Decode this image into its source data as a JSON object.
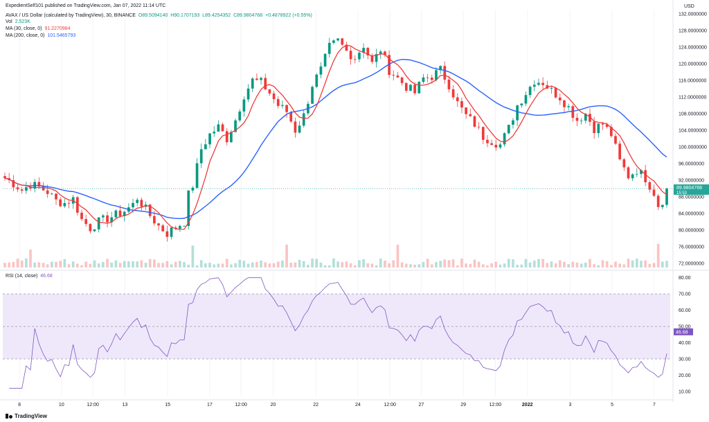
{
  "header": {
    "published": "ExpedientSelf101 published on TradingView.com, Jan 07, 2022 11:14 UTC",
    "symbol": "AVAX / US Dollar (calculated by TradingView), 30, BINANCE",
    "open": "O89.5094140",
    "high": "H90.1707193",
    "low": "L89.4254352",
    "close": "C89.9804768",
    "change": "+0.4878922 (+0.55%)",
    "vol_label": "Vol",
    "vol_value": "2.523K",
    "ma30_label": "MA (30, close, 0)",
    "ma30_value": "91.2270984",
    "ma200_label": "MA (200, close, 0)",
    "ma200_value": "101.5465793",
    "rsi_label": "RSI (14, close)",
    "rsi_value": "46.68"
  },
  "brand": "TradingView",
  "colors": {
    "up": "#089981",
    "down": "#ef3a3a",
    "ma30": "#ef3a3a",
    "ma200": "#2962ff",
    "rsi": "#7e57c2",
    "rsi_band": "#efe8fb",
    "last_price_bg": "#26a69a"
  },
  "chart_data": [
    {
      "type": "candlestick",
      "title": "AVAX / US Dollar (calculated by TradingView), 30, BINANCE",
      "ylabel": "USD",
      "ylim": [
        71,
        133
      ],
      "y_ticks": [
        "132.0000000",
        "128.0000000",
        "124.0000000",
        "120.0000000",
        "116.0000000",
        "112.0000000",
        "108.0000000",
        "104.0000000",
        "100.0000000",
        "96.0000000",
        "92.0000000",
        "88.0000000",
        "84.0000000",
        "80.0000000",
        "76.0000000",
        "72.0000000"
      ],
      "x_ticks": [
        "8",
        "10",
        "12:00",
        "13",
        "15",
        "17",
        "12:00",
        "20",
        "22",
        "24",
        "12:00",
        "27",
        "29",
        "12:00",
        "2022",
        "3",
        "5",
        "7"
      ],
      "last_price": "89.9804768",
      "last_countdown": "15:53",
      "close_path": [
        [
          0,
          92.5
        ],
        [
          2,
          91.2
        ],
        [
          4,
          89.6
        ],
        [
          6,
          91.0
        ],
        [
          8,
          90.3
        ],
        [
          10,
          89.2
        ],
        [
          12,
          87.0
        ],
        [
          14,
          86.5
        ],
        [
          16,
          87.5
        ],
        [
          18,
          82.5
        ],
        [
          20,
          80.5
        ],
        [
          22,
          82.0
        ],
        [
          24,
          82.8
        ],
        [
          26,
          83.6
        ],
        [
          28,
          84.6
        ],
        [
          30,
          86.1
        ],
        [
          31,
          87.8
        ],
        [
          32,
          86.4
        ],
        [
          34,
          83.5
        ],
        [
          36,
          81.0
        ],
        [
          38,
          79.2
        ],
        [
          40,
          80.7
        ],
        [
          42,
          82.0
        ],
        [
          43,
          88.5
        ],
        [
          44,
          90.8
        ],
        [
          46,
          99.5
        ],
        [
          48,
          103.0
        ],
        [
          50,
          104.8
        ],
        [
          52,
          102.0
        ],
        [
          54,
          106.5
        ],
        [
          56,
          112.5
        ],
        [
          58,
          116.0
        ],
        [
          60,
          115.5
        ],
        [
          62,
          113.0
        ],
        [
          64,
          110.0
        ],
        [
          66,
          108.5
        ],
        [
          68,
          104.0
        ],
        [
          70,
          107.5
        ],
        [
          72,
          115.0
        ],
        [
          74,
          118.5
        ],
        [
          76,
          124.0
        ],
        [
          78,
          125.5
        ],
        [
          80,
          123.0
        ],
        [
          82,
          121.5
        ],
        [
          84,
          124.5
        ],
        [
          86,
          120.0
        ],
        [
          88,
          123.5
        ],
        [
          90,
          118.5
        ],
        [
          92,
          116.5
        ],
        [
          94,
          114.5
        ],
        [
          96,
          113.0
        ],
        [
          98,
          116.5
        ],
        [
          100,
          117.0
        ],
        [
          102,
          118.5
        ],
        [
          104,
          115.0
        ],
        [
          106,
          110.5
        ],
        [
          108,
          107.5
        ],
        [
          110,
          105.5
        ],
        [
          112,
          102.5
        ],
        [
          114,
          101.5
        ],
        [
          116,
          100.5
        ],
        [
          118,
          104.5
        ],
        [
          120,
          110.0
        ],
        [
          122,
          113.0
        ],
        [
          124,
          116.0
        ],
        [
          126,
          115.5
        ],
        [
          128,
          113.5
        ],
        [
          130,
          112.0
        ],
        [
          132,
          109.5
        ],
        [
          134,
          106.5
        ],
        [
          136,
          108.0
        ],
        [
          138,
          104.5
        ],
        [
          140,
          105.5
        ],
        [
          142,
          103.0
        ],
        [
          144,
          96.5
        ],
        [
          146,
          93.0
        ],
        [
          148,
          94.5
        ],
        [
          150,
          92.5
        ],
        [
          152,
          89.0
        ],
        [
          153,
          86.0
        ],
        [
          154,
          87.2
        ],
        [
          155,
          89.98
        ]
      ],
      "series": [
        {
          "name": "MA (30, close, 0)",
          "value": "91.2270984"
        },
        {
          "name": "MA (200, close, 0)",
          "value": "101.5465793"
        },
        {
          "name": "Vol",
          "value": "2.523K"
        }
      ]
    },
    {
      "type": "line",
      "title": "RSI (14, close)",
      "ylim": [
        7,
        82
      ],
      "y_ticks": [
        "80.00",
        "70.00",
        "60.00",
        "50.00",
        "40.00",
        "30.00",
        "20.00",
        "10.00"
      ],
      "band": [
        30,
        70
      ],
      "mid_line": 50,
      "last_value": "46.68"
    }
  ]
}
